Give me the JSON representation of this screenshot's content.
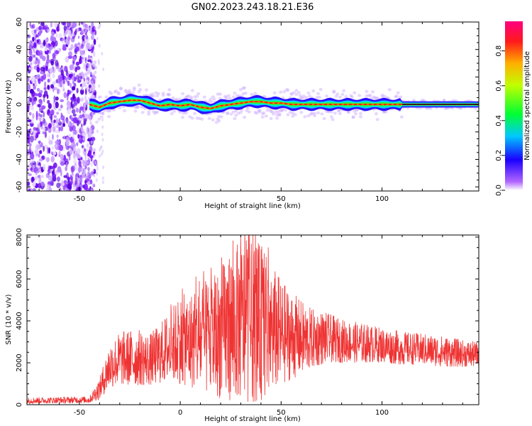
{
  "title": "GN02.2023.243.18.21.E36",
  "chart_data": [
    {
      "type": "heatmap",
      "xlabel": "Height of straight line (km)",
      "ylabel": "Frequency (Hz)",
      "xlim": [
        -76,
        148
      ],
      "ylim": [
        -63,
        60
      ],
      "xticks": [
        -50,
        0,
        50,
        100
      ],
      "yticks": [
        -60,
        -40,
        -20,
        0,
        20,
        40,
        60
      ],
      "colorbar": {
        "label": "Normalized spectral amplitude",
        "range": [
          0,
          0.97
        ],
        "ticks": [
          0.0,
          0.2,
          0.4,
          0.6,
          0.8
        ],
        "colormap": "gist_rainbow_r"
      },
      "noise_region_x": [
        -76,
        -44
      ],
      "ridge": [
        {
          "x": -45,
          "f": 0
        },
        {
          "x": -40,
          "f": -2
        },
        {
          "x": -35,
          "f": 1
        },
        {
          "x": -30,
          "f": 2
        },
        {
          "x": -25,
          "f": 3
        },
        {
          "x": -20,
          "f": 3
        },
        {
          "x": -15,
          "f": 1
        },
        {
          "x": -10,
          "f": -1
        },
        {
          "x": -5,
          "f": 0
        },
        {
          "x": 0,
          "f": -1
        },
        {
          "x": 5,
          "f": 0
        },
        {
          "x": 10,
          "f": -2
        },
        {
          "x": 15,
          "f": -3
        },
        {
          "x": 20,
          "f": -1
        },
        {
          "x": 25,
          "f": 0
        },
        {
          "x": 30,
          "f": 1
        },
        {
          "x": 35,
          "f": 2
        },
        {
          "x": 40,
          "f": 2
        },
        {
          "x": 45,
          "f": 1
        },
        {
          "x": 50,
          "f": 1
        },
        {
          "x": 55,
          "f": 0
        },
        {
          "x": 60,
          "f": 0
        },
        {
          "x": 70,
          "f": 0
        },
        {
          "x": 80,
          "f": 0
        },
        {
          "x": 90,
          "f": 0
        },
        {
          "x": 100,
          "f": 0
        },
        {
          "x": 110,
          "f": 0
        },
        {
          "x": 120,
          "f": 0
        },
        {
          "x": 130,
          "f": 0
        },
        {
          "x": 148,
          "f": 0
        }
      ]
    },
    {
      "type": "line",
      "xlabel": "Height of straight line (km)",
      "ylabel": "SNR (10 * v/v)",
      "xlim": [
        -76,
        148
      ],
      "ylim": [
        0,
        8100
      ],
      "xticks": [
        -50,
        0,
        50,
        100
      ],
      "yticks": [
        0,
        2000,
        4000,
        6000,
        8000
      ],
      "color": "#ef3333",
      "envelope": [
        {
          "x": -76,
          "low": 50,
          "high": 350
        },
        {
          "x": -45,
          "low": 80,
          "high": 400
        },
        {
          "x": -40,
          "low": 250,
          "high": 1300
        },
        {
          "x": -35,
          "low": 800,
          "high": 3000
        },
        {
          "x": -30,
          "low": 900,
          "high": 3500
        },
        {
          "x": -25,
          "low": 900,
          "high": 3600
        },
        {
          "x": -20,
          "low": 900,
          "high": 3600
        },
        {
          "x": -15,
          "low": 900,
          "high": 3400
        },
        {
          "x": -10,
          "low": 1000,
          "high": 3900
        },
        {
          "x": -5,
          "low": 1100,
          "high": 4600
        },
        {
          "x": 0,
          "low": 1000,
          "high": 5200
        },
        {
          "x": 5,
          "low": 800,
          "high": 5400
        },
        {
          "x": 10,
          "low": 600,
          "high": 5800
        },
        {
          "x": 15,
          "low": 400,
          "high": 6000
        },
        {
          "x": 20,
          "low": 300,
          "high": 6600
        },
        {
          "x": 25,
          "low": 200,
          "high": 7500
        },
        {
          "x": 30,
          "low": 200,
          "high": 7800
        },
        {
          "x": 35,
          "low": 100,
          "high": 7800
        },
        {
          "x": 40,
          "low": 200,
          "high": 7600
        },
        {
          "x": 45,
          "low": 500,
          "high": 6800
        },
        {
          "x": 50,
          "low": 900,
          "high": 6000
        },
        {
          "x": 55,
          "low": 1200,
          "high": 5400
        },
        {
          "x": 60,
          "low": 1400,
          "high": 5000
        },
        {
          "x": 65,
          "low": 1700,
          "high": 4600
        },
        {
          "x": 70,
          "low": 1900,
          "high": 4500
        },
        {
          "x": 75,
          "low": 2000,
          "high": 4300
        },
        {
          "x": 80,
          "low": 2000,
          "high": 4100
        },
        {
          "x": 90,
          "low": 2000,
          "high": 3900
        },
        {
          "x": 100,
          "low": 2000,
          "high": 3700
        },
        {
          "x": 110,
          "low": 1900,
          "high": 3500
        },
        {
          "x": 120,
          "low": 1900,
          "high": 3400
        },
        {
          "x": 130,
          "low": 1800,
          "high": 3300
        },
        {
          "x": 140,
          "low": 1800,
          "high": 3100
        },
        {
          "x": 148,
          "low": 1800,
          "high": 3000
        }
      ]
    }
  ]
}
